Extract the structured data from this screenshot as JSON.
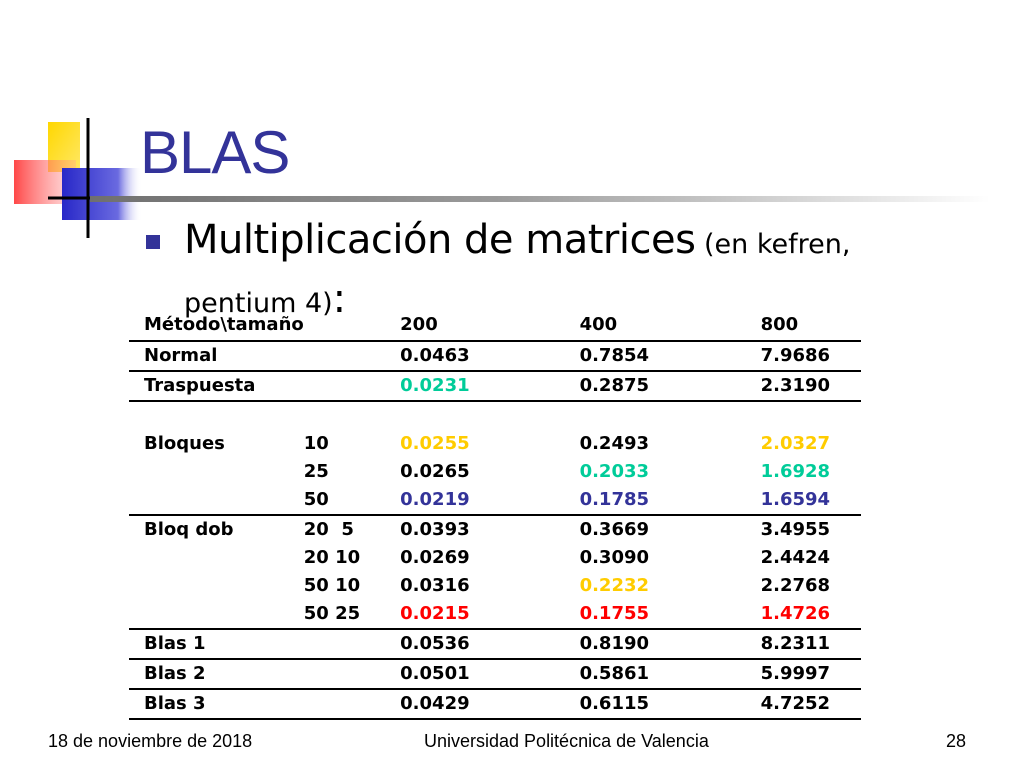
{
  "title": "BLAS",
  "bullet": {
    "main": "Multiplicación de matrices",
    "detail_a": " (en kefren,",
    "detail_b": "pentium 4)",
    "colon": ":"
  },
  "colors": {
    "title": "#333399",
    "green": "#00cc99",
    "orange": "#ffcc00",
    "blue": "#333399",
    "red": "#ff0000"
  },
  "table": {
    "header": [
      "Método\\tamaño",
      "",
      "200",
      "400",
      "800"
    ],
    "rows": [
      {
        "label": "Normal",
        "sub": "",
        "values": [
          "0.0463",
          "0.7854",
          "7.9686"
        ],
        "colors": [
          "",
          "",
          ""
        ],
        "line_bottom": true
      },
      {
        "label": "Traspuesta",
        "sub": "",
        "values": [
          "0.0231",
          "0.2875",
          "2.3190"
        ],
        "colors": [
          "green",
          "",
          ""
        ],
        "line_bottom": false
      },
      {
        "label": "",
        "sub": "",
        "values": [
          "",
          "",
          ""
        ],
        "colors": [
          "",
          "",
          ""
        ],
        "line_top": true
      },
      {
        "label": "Bloques",
        "sub": "10",
        "values": [
          "0.0255",
          "0.2493",
          "2.0327"
        ],
        "colors": [
          "orange",
          "",
          "orange"
        ]
      },
      {
        "label": "",
        "sub": "25",
        "values": [
          "0.0265",
          "0.2033",
          "1.6928"
        ],
        "colors": [
          "",
          "green",
          "green"
        ]
      },
      {
        "label": "",
        "sub": "50",
        "values": [
          "0.0219",
          "0.1785",
          "1.6594"
        ],
        "colors": [
          "blue",
          "blue",
          "blue"
        ],
        "line_bottom": true
      },
      {
        "label": "Bloq dob",
        "sub": "20  5",
        "values": [
          "0.0393",
          "0.3669",
          "3.4955"
        ],
        "colors": [
          "",
          "",
          ""
        ]
      },
      {
        "label": "",
        "sub": "20 10",
        "values": [
          "0.0269",
          "0.3090",
          "2.4424"
        ],
        "colors": [
          "",
          "",
          ""
        ]
      },
      {
        "label": "",
        "sub": "50 10",
        "values": [
          "0.0316",
          "0.2232",
          "2.2768"
        ],
        "colors": [
          "",
          "orange",
          ""
        ]
      },
      {
        "label": "",
        "sub": "50 25",
        "values": [
          "0.0215",
          "0.1755",
          "1.4726"
        ],
        "colors": [
          "red",
          "red",
          "red"
        ],
        "line_bottom": true
      },
      {
        "label": "Blas 1",
        "sub": "",
        "values": [
          "0.0536",
          "0.8190",
          "8.2311"
        ],
        "colors": [
          "",
          "",
          ""
        ],
        "line_bottom": true
      },
      {
        "label": "Blas 2",
        "sub": "",
        "values": [
          "0.0501",
          "0.5861",
          "5.9997"
        ],
        "colors": [
          "",
          "",
          ""
        ],
        "line_bottom": true
      },
      {
        "label": "Blas 3",
        "sub": "",
        "values": [
          "0.0429",
          "0.6115",
          "4.7252"
        ],
        "colors": [
          "",
          "",
          ""
        ],
        "line_bottom": true
      }
    ]
  },
  "footer": {
    "date": "18 de noviembre de 2018",
    "institution": "Universidad Politécnica de Valencia",
    "page": "28"
  }
}
